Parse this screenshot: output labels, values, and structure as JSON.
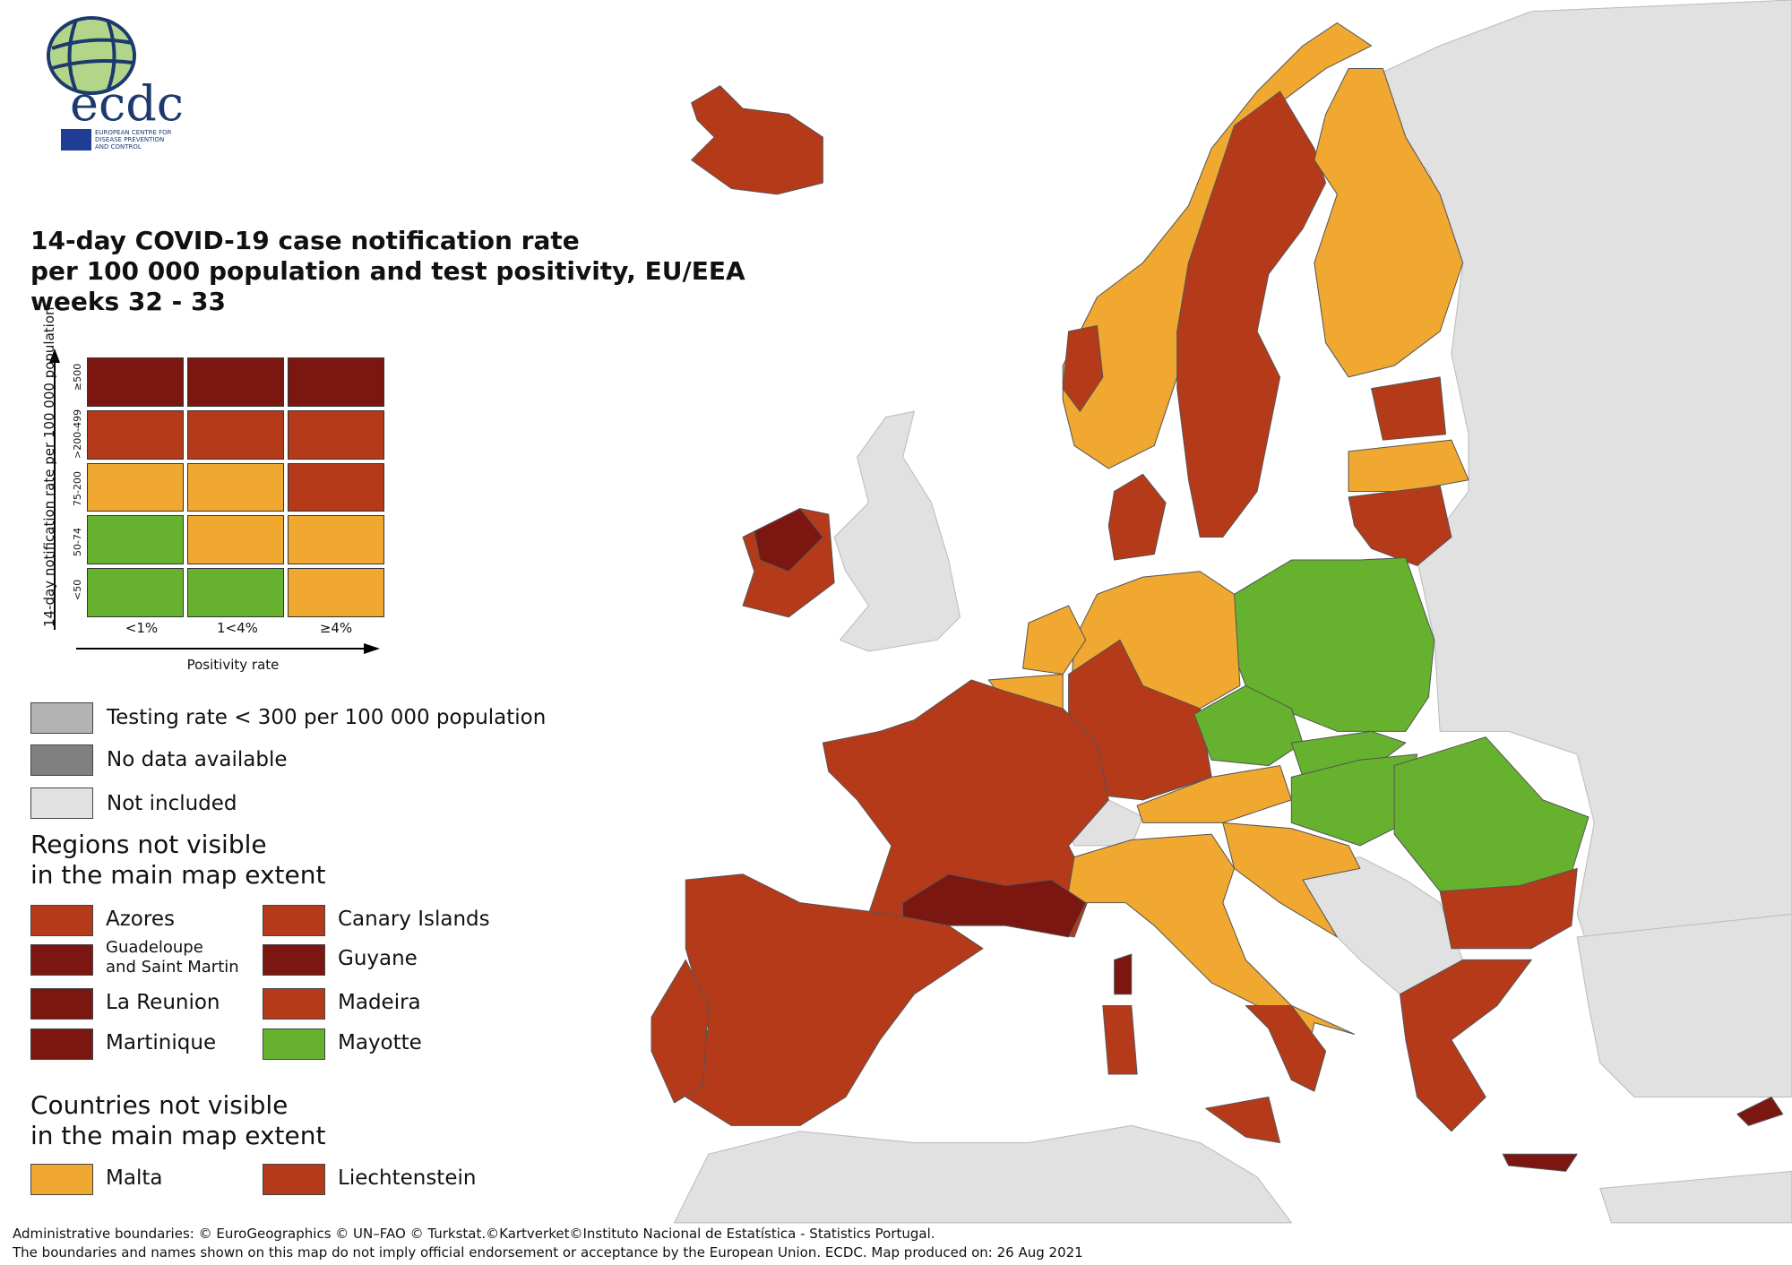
{
  "logo": {
    "wordmark": "ecdc",
    "org_name": "EUROPEAN CENTRE FOR\nDISEASE PREVENTION\nAND CONTROL"
  },
  "title": "14-day COVID-19 case notification rate\nper 100 000 population and test positivity, EU/EEA\nweeks 32 - 33",
  "matrix_legend": {
    "y_axis_label": "14-day notification rate per 100 000 population",
    "x_axis_label": "Positivity rate",
    "rows": [
      "≥500",
      ">200-499",
      "75-200",
      "50-74",
      "<50"
    ],
    "columns": [
      "<1%",
      "1<4%",
      "≥4%"
    ],
    "cells": [
      [
        "#7b1610",
        "#7b1610",
        "#7b1610"
      ],
      [
        "#b53a1a",
        "#b53a1a",
        "#b53a1a"
      ],
      [
        "#f0a830",
        "#f0a830",
        "#b53a1a"
      ],
      [
        "#66b22e",
        "#f0a830",
        "#f0a830"
      ],
      [
        "#66b22e",
        "#66b22e",
        "#f0a830"
      ]
    ]
  },
  "other_legend": [
    {
      "label": "Testing rate < 300 per 100 000 population",
      "color": "#b3b3b3"
    },
    {
      "label": "No data available",
      "color": "#808080"
    },
    {
      "label": "Not included",
      "color": "#e1e1e1"
    }
  ],
  "regions_heading": "Regions not visible\nin the main map extent",
  "regions": [
    {
      "label": "Azores",
      "color": "#b53a1a"
    },
    {
      "label": "Canary Islands",
      "color": "#b53a1a"
    },
    {
      "label": "Guadeloupe\nand Saint Martin",
      "color": "#7b1610"
    },
    {
      "label": "Guyane",
      "color": "#7b1610"
    },
    {
      "label": "La Reunion",
      "color": "#7b1610"
    },
    {
      "label": "Madeira",
      "color": "#b53a1a"
    },
    {
      "label": "Martinique",
      "color": "#7b1610"
    },
    {
      "label": "Mayotte",
      "color": "#66b22e"
    }
  ],
  "countries_heading": "Countries not visible\nin the main map extent",
  "countries": [
    {
      "label": "Malta",
      "color": "#f0a830"
    },
    {
      "label": "Liechtenstein",
      "color": "#b53a1a"
    }
  ],
  "footer": {
    "line1": "Administrative boundaries: © EuroGeographics © UN–FAO © Turkstat.©Kartverket©Instituto Nacional de Estatística - Statistics Portugal.",
    "line2": "The boundaries and names shown on this map do not imply official endorsement or acceptance by the European Union. ECDC. Map produced on: 26 Aug 2021"
  }
}
